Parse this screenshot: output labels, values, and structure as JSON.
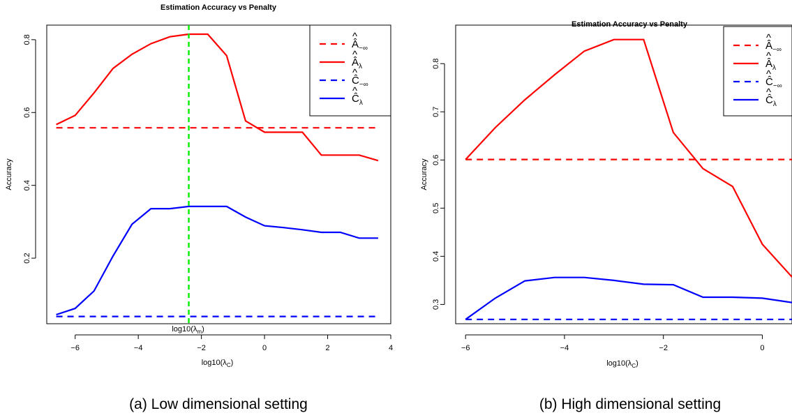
{
  "chart_data": [
    {
      "type": "line",
      "title": "Estimation Accuracy vs Penalty",
      "xlabel": "log10(λ_C)",
      "ylabel": "Accuracy",
      "caption": "(a)  Low dimensional setting",
      "xlim": [
        -6.9,
        4.0
      ],
      "ylim": [
        0.02,
        0.84
      ],
      "xticks": [
        -6,
        -4,
        -2,
        0,
        2,
        4
      ],
      "yticks": [
        0.2,
        0.4,
        0.6,
        0.8
      ],
      "legend_position": "top-right",
      "series": [
        {
          "name": "Â_−∞",
          "color": "#ff0000",
          "dash": "dashed",
          "x": [
            -6.6,
            3.6
          ],
          "y": [
            0.558,
            0.558
          ]
        },
        {
          "name": "Â_λ",
          "color": "#ff0000",
          "dash": "solid",
          "x": [
            -6.6,
            -6.0,
            -5.4,
            -4.8,
            -4.2,
            -3.6,
            -3.0,
            -2.4,
            -1.8,
            -1.2,
            -0.6,
            0.0,
            0.6,
            1.2,
            1.8,
            2.4,
            3.0,
            3.6
          ],
          "y": [
            0.567,
            0.592,
            0.654,
            0.721,
            0.76,
            0.789,
            0.808,
            0.815,
            0.815,
            0.756,
            0.577,
            0.546,
            0.546,
            0.546,
            0.483,
            0.483,
            0.483,
            0.468
          ]
        },
        {
          "name": "Ĉ_−∞",
          "color": "#0000ff",
          "dash": "dashed",
          "x": [
            -6.6,
            3.6
          ],
          "y": [
            0.04,
            0.04
          ]
        },
        {
          "name": "Ĉ_λ",
          "color": "#0000ff",
          "dash": "solid",
          "x": [
            -6.6,
            -6.0,
            -5.4,
            -4.8,
            -4.2,
            -3.6,
            -3.0,
            -2.4,
            -1.8,
            -1.2,
            -0.6,
            0.0,
            0.6,
            1.2,
            1.8,
            2.4,
            3.0,
            3.6
          ],
          "y": [
            0.045,
            0.062,
            0.11,
            0.206,
            0.293,
            0.336,
            0.336,
            0.342,
            0.342,
            0.342,
            0.313,
            0.289,
            0.284,
            0.278,
            0.271,
            0.271,
            0.255,
            0.255
          ]
        }
      ],
      "vline": {
        "x": -2.4,
        "color": "#00ee00",
        "label": "log10(λ_m)"
      }
    },
    {
      "type": "line",
      "title": "Estimation Accuracy vs Penalty",
      "xlabel": "log10(λ_C)",
      "ylabel": "Accuracy",
      "caption": "(b)  High dimensional setting",
      "xlim": [
        -6.2,
        0.6
      ],
      "ylim": [
        0.26,
        0.88
      ],
      "xticks": [
        -6,
        -4,
        -2,
        0
      ],
      "yticks": [
        0.3,
        0.4,
        0.5,
        0.6,
        0.7,
        0.8
      ],
      "legend_position": "top-right",
      "series": [
        {
          "name": "Â_−∞",
          "color": "#ff0000",
          "dash": "dashed",
          "x": [
            -6.0,
            0.6
          ],
          "y": [
            0.601,
            0.601
          ]
        },
        {
          "name": "Â_λ",
          "color": "#ff0000",
          "dash": "solid",
          "x": [
            -6.0,
            -5.4,
            -4.8,
            -4.2,
            -3.6,
            -3.0,
            -2.4,
            -1.8,
            -1.2,
            -0.6,
            0.0,
            0.6
          ],
          "y": [
            0.601,
            0.667,
            0.725,
            0.777,
            0.826,
            0.85,
            0.85,
            0.657,
            0.582,
            0.545,
            0.425,
            0.357
          ]
        },
        {
          "name": "Ĉ_−∞",
          "color": "#0000ff",
          "dash": "dashed",
          "x": [
            -6.0,
            0.6
          ],
          "y": [
            0.269,
            0.269
          ]
        },
        {
          "name": "Ĉ_λ",
          "color": "#0000ff",
          "dash": "solid",
          "x": [
            -6.0,
            -5.4,
            -4.8,
            -4.2,
            -3.6,
            -3.0,
            -2.4,
            -1.8,
            -1.2,
            -0.6,
            0.0,
            0.6
          ],
          "y": [
            0.269,
            0.313,
            0.349,
            0.356,
            0.356,
            0.35,
            0.342,
            0.341,
            0.315,
            0.315,
            0.313,
            0.304
          ]
        }
      ]
    }
  ]
}
